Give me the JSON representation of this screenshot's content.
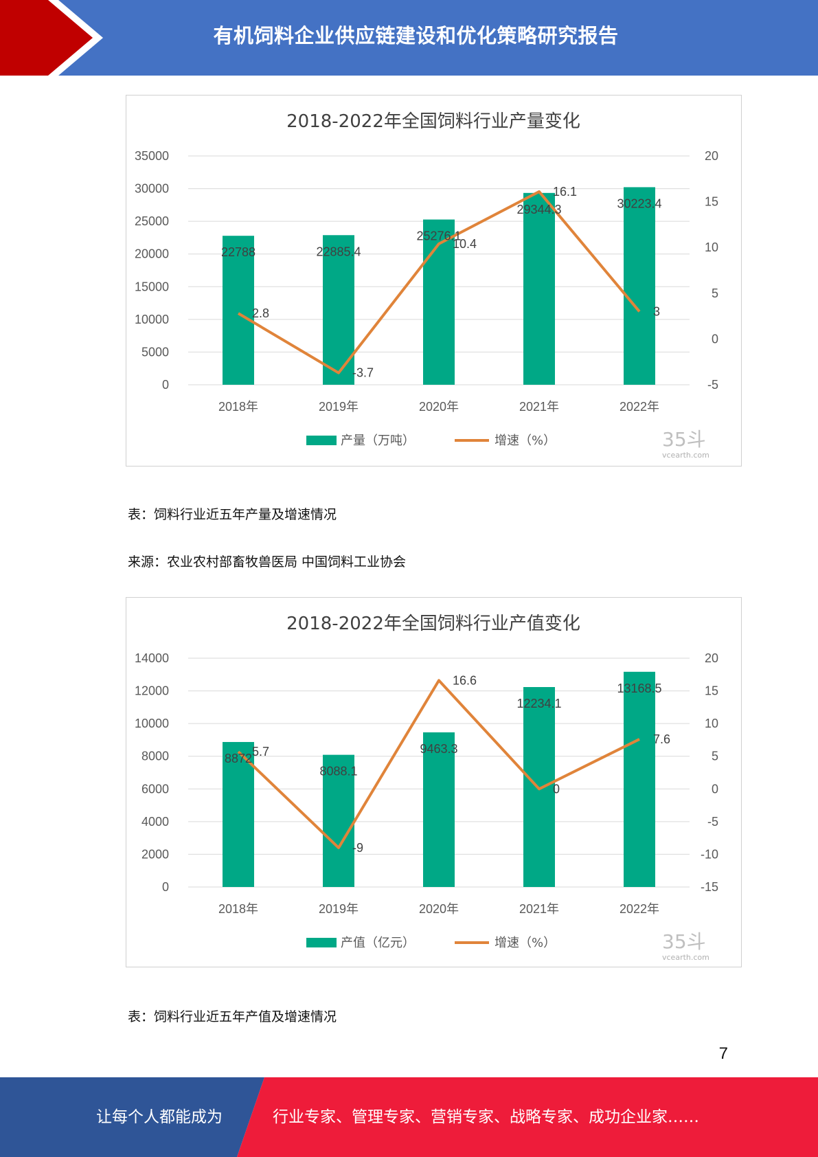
{
  "header": {
    "title": "有机饲料企业供应链建设和优化策略研究报告"
  },
  "colors": {
    "header_blue": "#4472c4",
    "header_red": "#c00000",
    "bar": "#00a886",
    "line": "#e0843a",
    "footer_blue": "#2f5597",
    "footer_red": "#ee1c3a"
  },
  "chart_data": [
    {
      "type": "bar",
      "title": "2018-2022年全国饲料行业产量变化",
      "categories": [
        "2018年",
        "2019年",
        "2020年",
        "2021年",
        "2022年"
      ],
      "series": [
        {
          "name": "产量（万吨）",
          "type": "bar",
          "axis": "left",
          "values": [
            22788,
            22885.4,
            25276.1,
            29344.3,
            30223.4
          ],
          "labels": [
            "22788",
            "22885.4",
            "25276.1",
            "29344.3",
            "30223.4"
          ]
        },
        {
          "name": "增速（%）",
          "type": "line",
          "axis": "right",
          "values": [
            2.8,
            -3.7,
            10.4,
            16.1,
            3
          ],
          "labels": [
            "2.8",
            "-3.7",
            "10.4",
            "16.1",
            "3"
          ]
        }
      ],
      "ylim": [
        0,
        35000
      ],
      "y_ticks": [
        "35000",
        "30000",
        "25000",
        "20000",
        "15000",
        "10000",
        "5000",
        "0"
      ],
      "y2lim": [
        -5,
        20
      ],
      "y2_ticks": [
        "20",
        "15",
        "10",
        "5",
        "0",
        "-5"
      ],
      "grid": true,
      "legend": "bottom",
      "watermark": "35斗",
      "watermark_url": "vcearth.com"
    },
    {
      "type": "bar",
      "title": "2018-2022年全国饲料行业产值变化",
      "categories": [
        "2018年",
        "2019年",
        "2020年",
        "2021年",
        "2022年"
      ],
      "series": [
        {
          "name": "产值（亿元）",
          "type": "bar",
          "axis": "left",
          "values": [
            8872,
            8088.1,
            9463.3,
            12234.1,
            13168.5
          ],
          "labels": [
            "8872",
            "8088.1",
            "9463.3",
            "12234.1",
            "13168.5"
          ]
        },
        {
          "name": "增速（%）",
          "type": "line",
          "axis": "right",
          "values": [
            5.7,
            -9,
            16.6,
            0,
            7.6
          ],
          "labels": [
            "5.7",
            "-9",
            "16.6",
            "0",
            "7.6"
          ]
        }
      ],
      "ylim": [
        0,
        14000
      ],
      "y_ticks": [
        "14000",
        "12000",
        "10000",
        "8000",
        "6000",
        "4000",
        "2000",
        "0"
      ],
      "y2lim": [
        -15,
        20
      ],
      "y2_ticks": [
        "20",
        "15",
        "10",
        "5",
        "0",
        "-5",
        "-10",
        "-15"
      ],
      "grid": true,
      "legend": "bottom",
      "watermark": "35斗",
      "watermark_url": "vcearth.com"
    }
  ],
  "captions": {
    "chart1": "表：饲料行业近五年产量及增速情况",
    "source": "来源：农业农村部畜牧兽医局  中国饲料工业协会",
    "chart2": "表：饲料行业近五年产值及增速情况"
  },
  "page_number": "7",
  "footer": {
    "left": "让每个人都能成为",
    "right": "行业专家、管理专家、营销专家、战略专家、成功企业家……"
  }
}
